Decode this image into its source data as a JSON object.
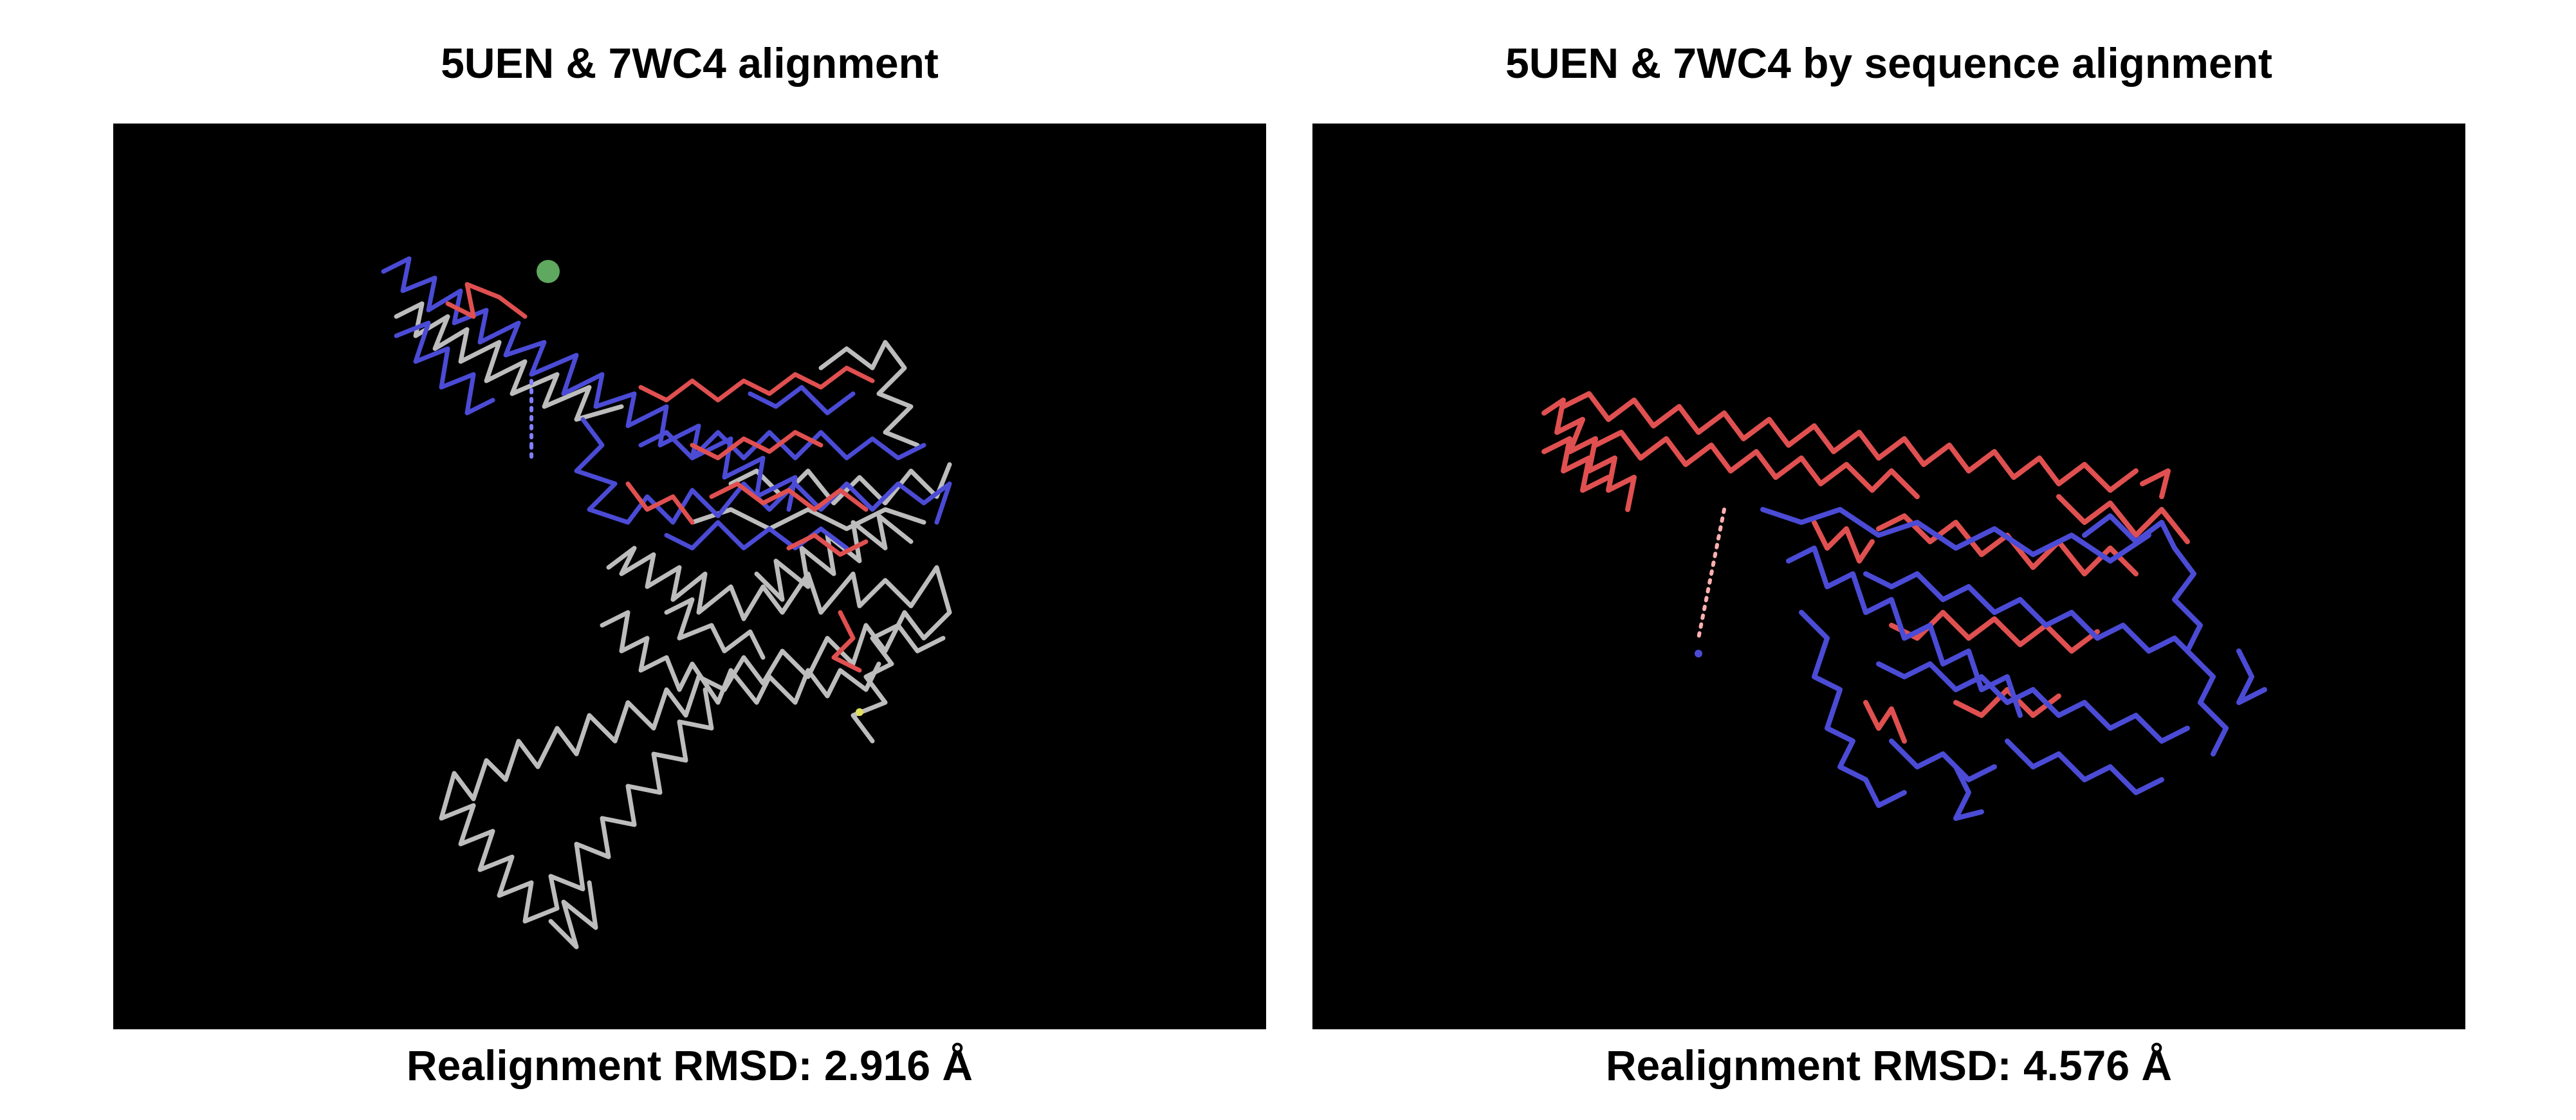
{
  "panels": [
    {
      "title": "5UEN & 7WC4 alignment",
      "caption_label": "Realignment RMSD:",
      "caption_value": "2.916 Å"
    },
    {
      "title": "5UEN & 7WC4 by sequence alignment",
      "caption_label": "Realignment RMSD:",
      "caption_value": "4.576 Å"
    }
  ],
  "colors": {
    "viewport_background": "#000000",
    "chain_blue": "#4b4bd6",
    "chain_red": "#e05050",
    "chain_gray": "#bdbdbd",
    "ion_green": "#5fa85f",
    "ligand_yellow": "#e0e060"
  }
}
